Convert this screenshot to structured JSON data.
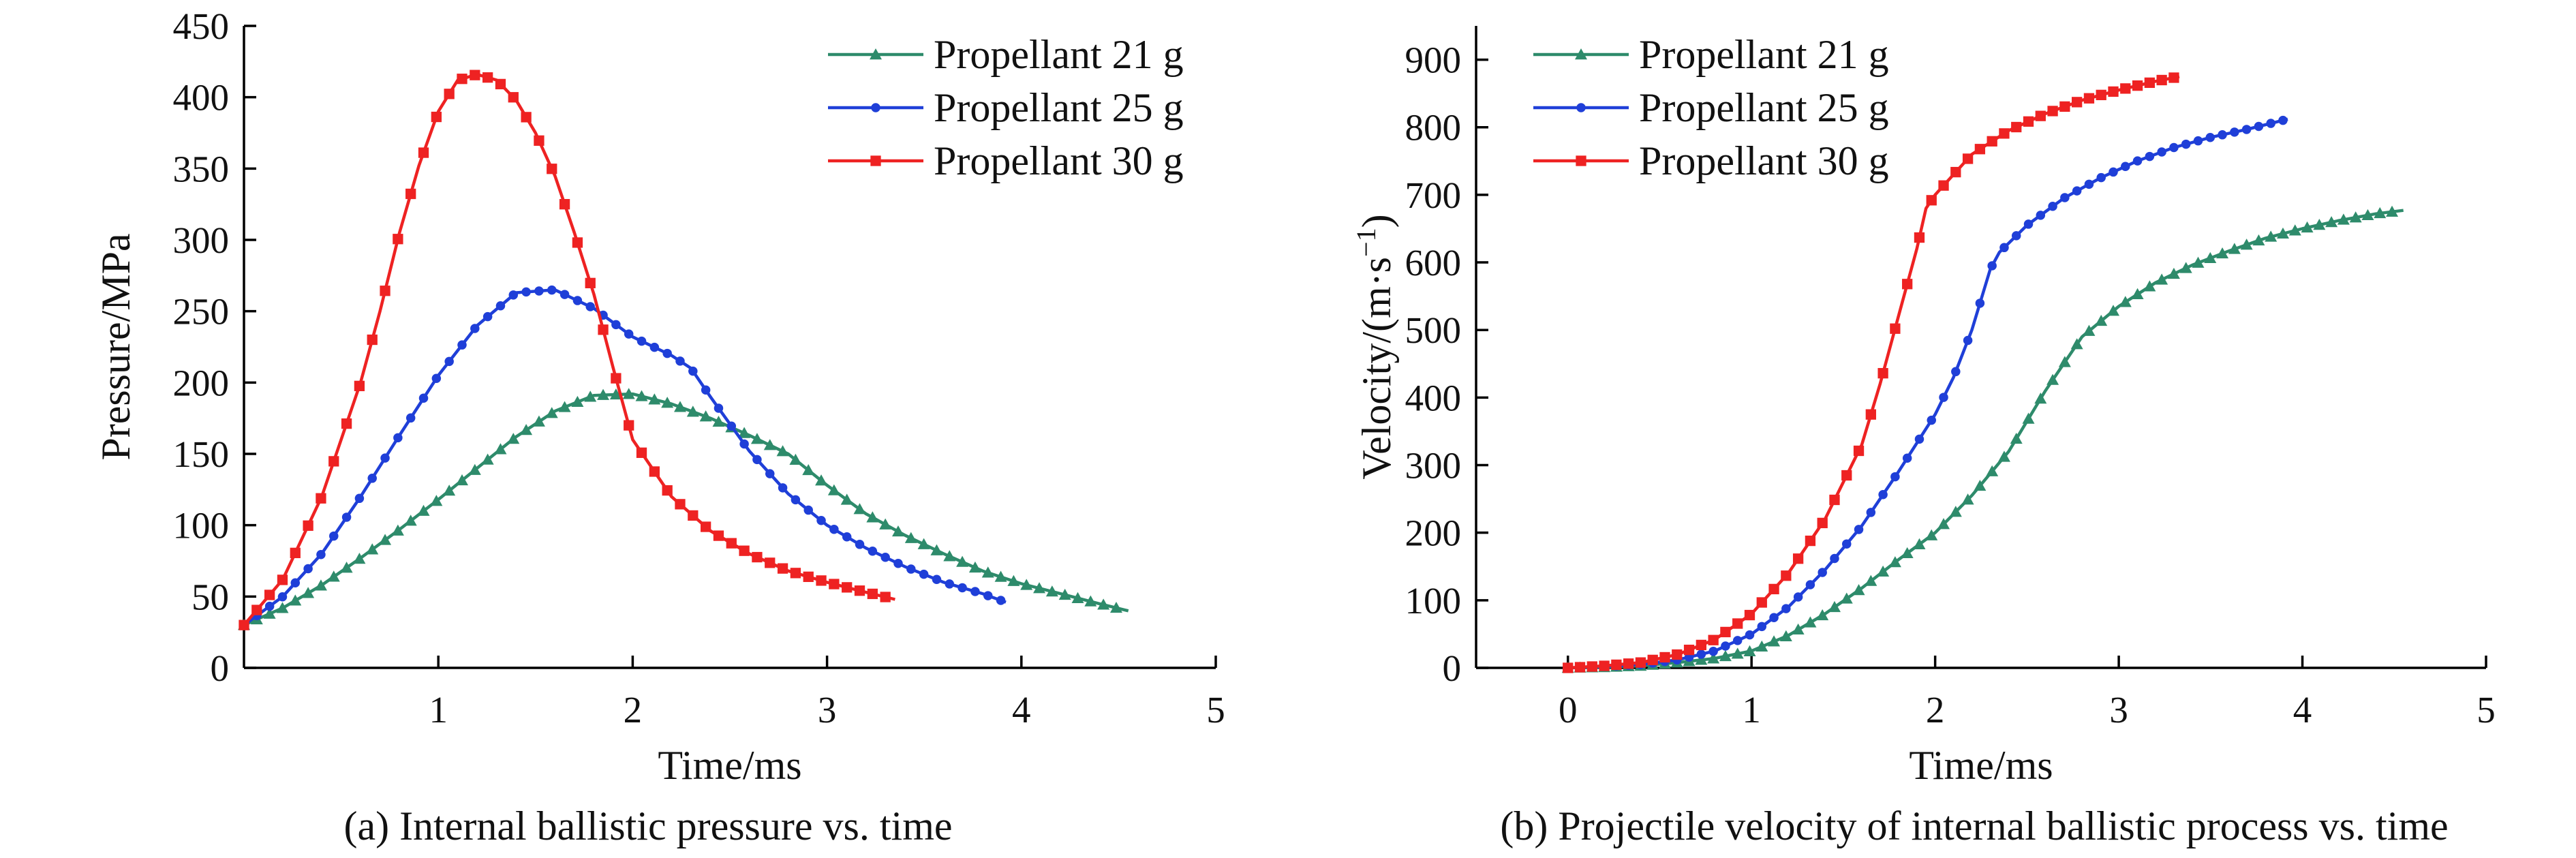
{
  "chart_data": [
    {
      "id": "a",
      "type": "line",
      "caption": "(a) Internal ballistic pressure vs. time",
      "xlabel": "Time/ms",
      "ylabel": "Pressure/MPa",
      "xlim": [
        0,
        5
      ],
      "ylim": [
        0,
        450
      ],
      "xticks": [
        1,
        2,
        3,
        4,
        5
      ],
      "yticks": [
        0,
        50,
        100,
        150,
        200,
        250,
        300,
        350,
        400,
        450
      ],
      "grid": false,
      "legend_position": "top-right",
      "series": [
        {
          "name": "Propellant 21 g",
          "color": "#2e8b6b",
          "marker": "triangle",
          "x": [
            0,
            0.2,
            0.4,
            0.6,
            0.8,
            1.0,
            1.2,
            1.4,
            1.6,
            1.8,
            2.0,
            2.2,
            2.4,
            2.6,
            2.8,
            3.0,
            3.2,
            3.4,
            3.6,
            3.8,
            4.0,
            4.2,
            4.4,
            4.55
          ],
          "y": [
            30,
            42,
            58,
            77,
            97,
            118,
            140,
            162,
            180,
            191,
            192,
            185,
            175,
            163,
            150,
            128,
            108,
            93,
            80,
            68,
            59,
            52,
            45,
            40
          ]
        },
        {
          "name": "Propellant 25 g",
          "color": "#1f3fd8",
          "marker": "circle",
          "x": [
            0,
            0.2,
            0.4,
            0.6,
            0.8,
            1.0,
            1.2,
            1.4,
            1.6,
            1.8,
            2.0,
            2.2,
            2.3,
            2.4,
            2.6,
            2.8,
            3.0,
            3.2,
            3.4,
            3.6,
            3.8,
            3.92
          ],
          "y": [
            30,
            50,
            80,
            120,
            163,
            205,
            240,
            263,
            265,
            252,
            232,
            219,
            210,
            190,
            152,
            122,
            100,
            84,
            71,
            60,
            52,
            46
          ]
        },
        {
          "name": "Propellant 30 g",
          "color": "#ee2222",
          "marker": "square",
          "x": [
            0,
            0.2,
            0.4,
            0.6,
            0.7,
            0.8,
            0.9,
            1.0,
            1.1,
            1.2,
            1.3,
            1.4,
            1.5,
            1.6,
            1.7,
            1.8,
            1.9,
            2.0,
            2.2,
            2.4,
            2.6,
            2.8,
            3.0,
            3.2,
            3.35
          ],
          "y": [
            30,
            62,
            120,
            200,
            250,
            305,
            352,
            390,
            412,
            416,
            412,
            398,
            375,
            345,
            305,
            262,
            210,
            160,
            120,
            96,
            80,
            68,
            60,
            53,
            48
          ]
        }
      ]
    },
    {
      "id": "b",
      "type": "line",
      "caption": "(b) Projectile velocity of internal ballistic process vs. time",
      "xlabel": "Time/ms",
      "ylabel": "Velocity/(m·s",
      "ylabel_superscript": "−1",
      "ylabel_suffix": ")",
      "xlim": [
        -0.5,
        5
      ],
      "ylim": [
        0,
        950
      ],
      "xticks": [
        0,
        1,
        2,
        3,
        4,
        5
      ],
      "yticks": [
        0,
        100,
        200,
        300,
        400,
        500,
        600,
        700,
        800,
        900
      ],
      "grid": false,
      "legend_position": "top-left",
      "series": [
        {
          "name": "Propellant 21 g",
          "color": "#2e8b6b",
          "marker": "triangle",
          "x": [
            0,
            0.2,
            0.4,
            0.6,
            0.8,
            1.0,
            1.2,
            1.4,
            1.6,
            1.8,
            2.0,
            2.2,
            2.4,
            2.6,
            2.8,
            3.0,
            3.2,
            3.4,
            3.6,
            3.8,
            4.0,
            4.2,
            4.4,
            4.55
          ],
          "y": [
            0,
            1,
            3,
            8,
            14,
            25,
            48,
            80,
            118,
            160,
            200,
            255,
            320,
            410,
            490,
            535,
            570,
            596,
            617,
            636,
            650,
            662,
            672,
            677
          ]
        },
        {
          "name": "Propellant 25 g",
          "color": "#1f3fd8",
          "marker": "circle",
          "x": [
            0,
            0.2,
            0.4,
            0.6,
            0.8,
            1.0,
            1.2,
            1.4,
            1.6,
            1.8,
            2.0,
            2.1,
            2.2,
            2.3,
            2.35,
            2.5,
            2.7,
            2.9,
            3.1,
            3.3,
            3.5,
            3.7,
            3.92
          ],
          "y": [
            0,
            2,
            5,
            12,
            25,
            50,
            90,
            145,
            210,
            290,
            375,
            430,
            500,
            590,
            615,
            655,
            695,
            725,
            750,
            770,
            785,
            797,
            812
          ]
        },
        {
          "name": "Propellant 30 g",
          "color": "#ee2222",
          "marker": "square",
          "x": [
            0,
            0.2,
            0.4,
            0.6,
            0.8,
            1.0,
            1.2,
            1.4,
            1.6,
            1.7,
            1.8,
            1.9,
            1.95,
            2.0,
            2.2,
            2.4,
            2.6,
            2.8,
            3.0,
            3.2,
            3.33
          ],
          "y": [
            0,
            3,
            8,
            20,
            42,
            80,
            140,
            220,
            330,
            420,
            520,
            620,
            680,
            700,
            760,
            795,
            820,
            840,
            855,
            868,
            875
          ]
        }
      ]
    }
  ]
}
